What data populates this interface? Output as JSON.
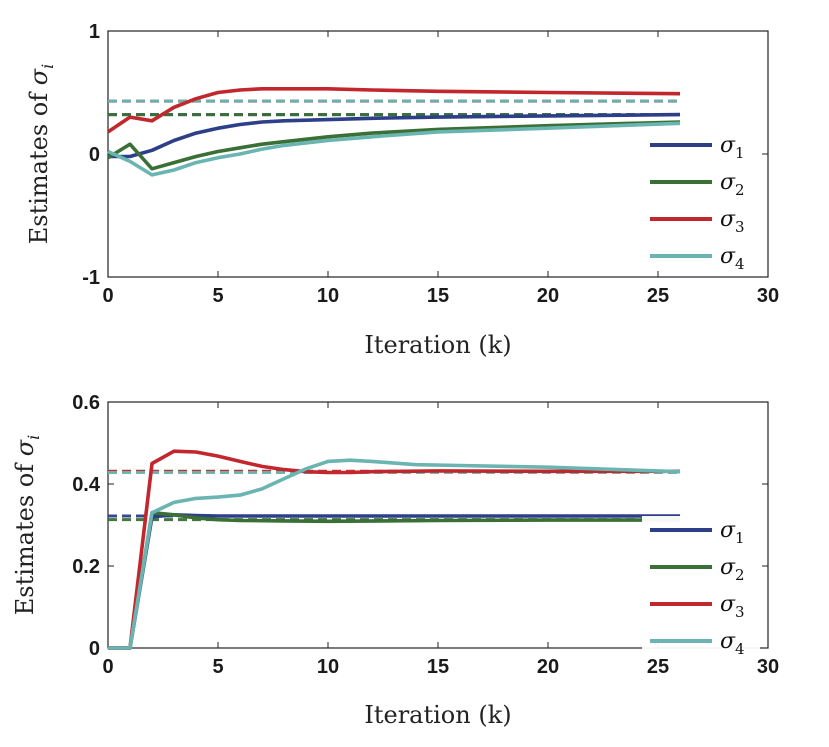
{
  "chart_data": [
    {
      "type": "line",
      "title": "",
      "xlabel": "Iteration (k)",
      "ylabel_text": "Estimates of ",
      "ylabel_symbol": "σ",
      "ylabel_sub": "i",
      "xlim": [
        0,
        30
      ],
      "ylim": [
        -1,
        1
      ],
      "xticks": [
        0,
        5,
        10,
        15,
        20,
        25,
        30
      ],
      "yticks": [
        -1,
        0,
        1
      ],
      "ytick_labels": [
        "-1",
        "0",
        "1"
      ],
      "grid": false,
      "legend_position": "right",
      "series": [
        {
          "name": "σ",
          "sub": "1",
          "color": "#2e3f8a",
          "x": [
            0,
            1,
            2,
            3,
            4,
            5,
            6,
            7,
            8,
            10,
            12,
            15,
            20,
            26
          ],
          "y": [
            -0.02,
            -0.02,
            0.03,
            0.11,
            0.17,
            0.21,
            0.24,
            0.26,
            0.27,
            0.28,
            0.29,
            0.3,
            0.31,
            0.32
          ],
          "reference": 0.32
        },
        {
          "name": "σ",
          "sub": "2",
          "color": "#3a7036",
          "x": [
            0,
            1,
            2,
            3,
            4,
            5,
            6,
            7,
            8,
            10,
            12,
            15,
            20,
            26
          ],
          "y": [
            -0.03,
            0.08,
            -0.12,
            -0.07,
            -0.02,
            0.02,
            0.05,
            0.08,
            0.1,
            0.14,
            0.17,
            0.2,
            0.23,
            0.26
          ],
          "reference": 0.32
        },
        {
          "name": "σ",
          "sub": "3",
          "color": "#c1272d",
          "x": [
            0,
            1,
            2,
            3,
            4,
            5,
            6,
            7,
            8,
            10,
            12,
            15,
            20,
            26
          ],
          "y": [
            0.18,
            0.3,
            0.27,
            0.38,
            0.45,
            0.5,
            0.52,
            0.53,
            0.53,
            0.53,
            0.52,
            0.51,
            0.5,
            0.49
          ],
          "reference": 0.43
        },
        {
          "name": "σ",
          "sub": "4",
          "color": "#6ab5b2",
          "x": [
            0,
            1,
            2,
            3,
            4,
            5,
            6,
            7,
            8,
            10,
            12,
            15,
            20,
            26
          ],
          "y": [
            0.02,
            -0.06,
            -0.17,
            -0.13,
            -0.07,
            -0.03,
            0.0,
            0.04,
            0.07,
            0.11,
            0.14,
            0.18,
            0.21,
            0.25
          ],
          "reference": 0.43
        }
      ]
    },
    {
      "type": "line",
      "title": "",
      "xlabel": "Iteration (k)",
      "ylabel_text": "Estimates of ",
      "ylabel_symbol": "σ",
      "ylabel_sub": "i",
      "xlim": [
        0,
        30
      ],
      "ylim": [
        0,
        0.6
      ],
      "xticks": [
        0,
        5,
        10,
        15,
        20,
        25,
        30
      ],
      "yticks": [
        0,
        0.2,
        0.4,
        0.6
      ],
      "ytick_labels": [
        "0",
        "0.2",
        "0.4",
        "0.6"
      ],
      "grid": false,
      "legend_position": "right",
      "series": [
        {
          "name": "σ",
          "sub": "1",
          "color": "#2e3f8a",
          "x": [
            0,
            1,
            2,
            3,
            4,
            5,
            6,
            8,
            10,
            15,
            20,
            26
          ],
          "y": [
            0,
            0,
            0.32,
            0.325,
            0.323,
            0.322,
            0.322,
            0.322,
            0.322,
            0.322,
            0.322,
            0.322
          ],
          "reference": 0.322
        },
        {
          "name": "σ",
          "sub": "2",
          "color": "#3a7036",
          "x": [
            0,
            1,
            2,
            3,
            4,
            5,
            6,
            8,
            10,
            15,
            20,
            26
          ],
          "y": [
            0,
            0,
            0.33,
            0.325,
            0.317,
            0.313,
            0.311,
            0.31,
            0.309,
            0.311,
            0.312,
            0.312
          ],
          "reference": 0.313
        },
        {
          "name": "σ",
          "sub": "3",
          "color": "#c1272d",
          "x": [
            0,
            1,
            2,
            3,
            4,
            5,
            6,
            7,
            8,
            9,
            10,
            11,
            12,
            15,
            20,
            26
          ],
          "y": [
            0,
            0,
            0.45,
            0.48,
            0.478,
            0.468,
            0.455,
            0.443,
            0.435,
            0.43,
            0.428,
            0.428,
            0.43,
            0.432,
            0.431,
            0.431
          ],
          "reference": 0.431
        },
        {
          "name": "σ",
          "sub": "4",
          "color": "#6ab5b2",
          "x": [
            0,
            1,
            2,
            3,
            4,
            5,
            6,
            7,
            8,
            9,
            10,
            11,
            12,
            14,
            16,
            20,
            26
          ],
          "y": [
            0,
            0,
            0.33,
            0.355,
            0.365,
            0.368,
            0.373,
            0.388,
            0.413,
            0.437,
            0.455,
            0.458,
            0.455,
            0.447,
            0.445,
            0.441,
            0.43
          ],
          "reference": 0.428
        }
      ]
    }
  ]
}
